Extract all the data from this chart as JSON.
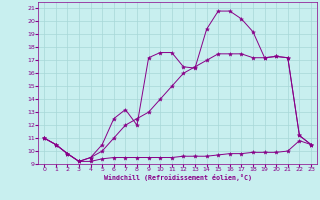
{
  "xlabel": "Windchill (Refroidissement éolien,°C)",
  "background_color": "#c8efef",
  "grid_color": "#a8d8d8",
  "line_color": "#880088",
  "xlim": [
    -0.5,
    23.5
  ],
  "ylim": [
    9,
    21.5
  ],
  "x_ticks": [
    0,
    1,
    2,
    3,
    4,
    5,
    6,
    7,
    8,
    9,
    10,
    11,
    12,
    13,
    14,
    15,
    16,
    17,
    18,
    19,
    20,
    21,
    22,
    23
  ],
  "y_ticks": [
    9,
    10,
    11,
    12,
    13,
    14,
    15,
    16,
    17,
    18,
    19,
    20,
    21
  ],
  "line1_x": [
    0,
    1,
    2,
    3,
    4,
    5,
    6,
    7,
    8,
    9,
    10,
    11,
    12,
    13,
    14,
    15,
    16,
    17,
    18,
    19,
    20,
    21,
    22,
    23
  ],
  "line1_y": [
    11.0,
    10.5,
    9.8,
    9.2,
    9.2,
    9.4,
    9.5,
    9.5,
    9.5,
    9.5,
    9.5,
    9.5,
    9.6,
    9.6,
    9.6,
    9.7,
    9.8,
    9.8,
    9.9,
    9.9,
    9.9,
    10.0,
    10.8,
    10.5
  ],
  "line2_x": [
    0,
    1,
    2,
    3,
    4,
    5,
    6,
    7,
    8,
    9,
    10,
    11,
    12,
    13,
    14,
    15,
    16,
    17,
    18,
    19,
    20,
    21,
    22,
    23
  ],
  "line2_y": [
    11.0,
    10.5,
    9.8,
    9.2,
    9.5,
    10.5,
    12.5,
    13.2,
    12.0,
    17.2,
    17.6,
    17.6,
    16.5,
    16.4,
    19.4,
    20.8,
    20.8,
    20.2,
    19.2,
    17.2,
    17.3,
    17.2,
    11.2,
    10.5
  ],
  "line3_x": [
    0,
    1,
    2,
    3,
    4,
    5,
    6,
    7,
    8,
    9,
    10,
    11,
    12,
    13,
    14,
    15,
    16,
    17,
    18,
    19,
    20,
    21,
    22,
    23
  ],
  "line3_y": [
    11.0,
    10.5,
    9.8,
    9.2,
    9.5,
    10.0,
    11.0,
    12.0,
    12.5,
    13.0,
    14.0,
    15.0,
    16.0,
    16.5,
    17.0,
    17.5,
    17.5,
    17.5,
    17.2,
    17.2,
    17.3,
    17.2,
    11.2,
    10.5
  ]
}
